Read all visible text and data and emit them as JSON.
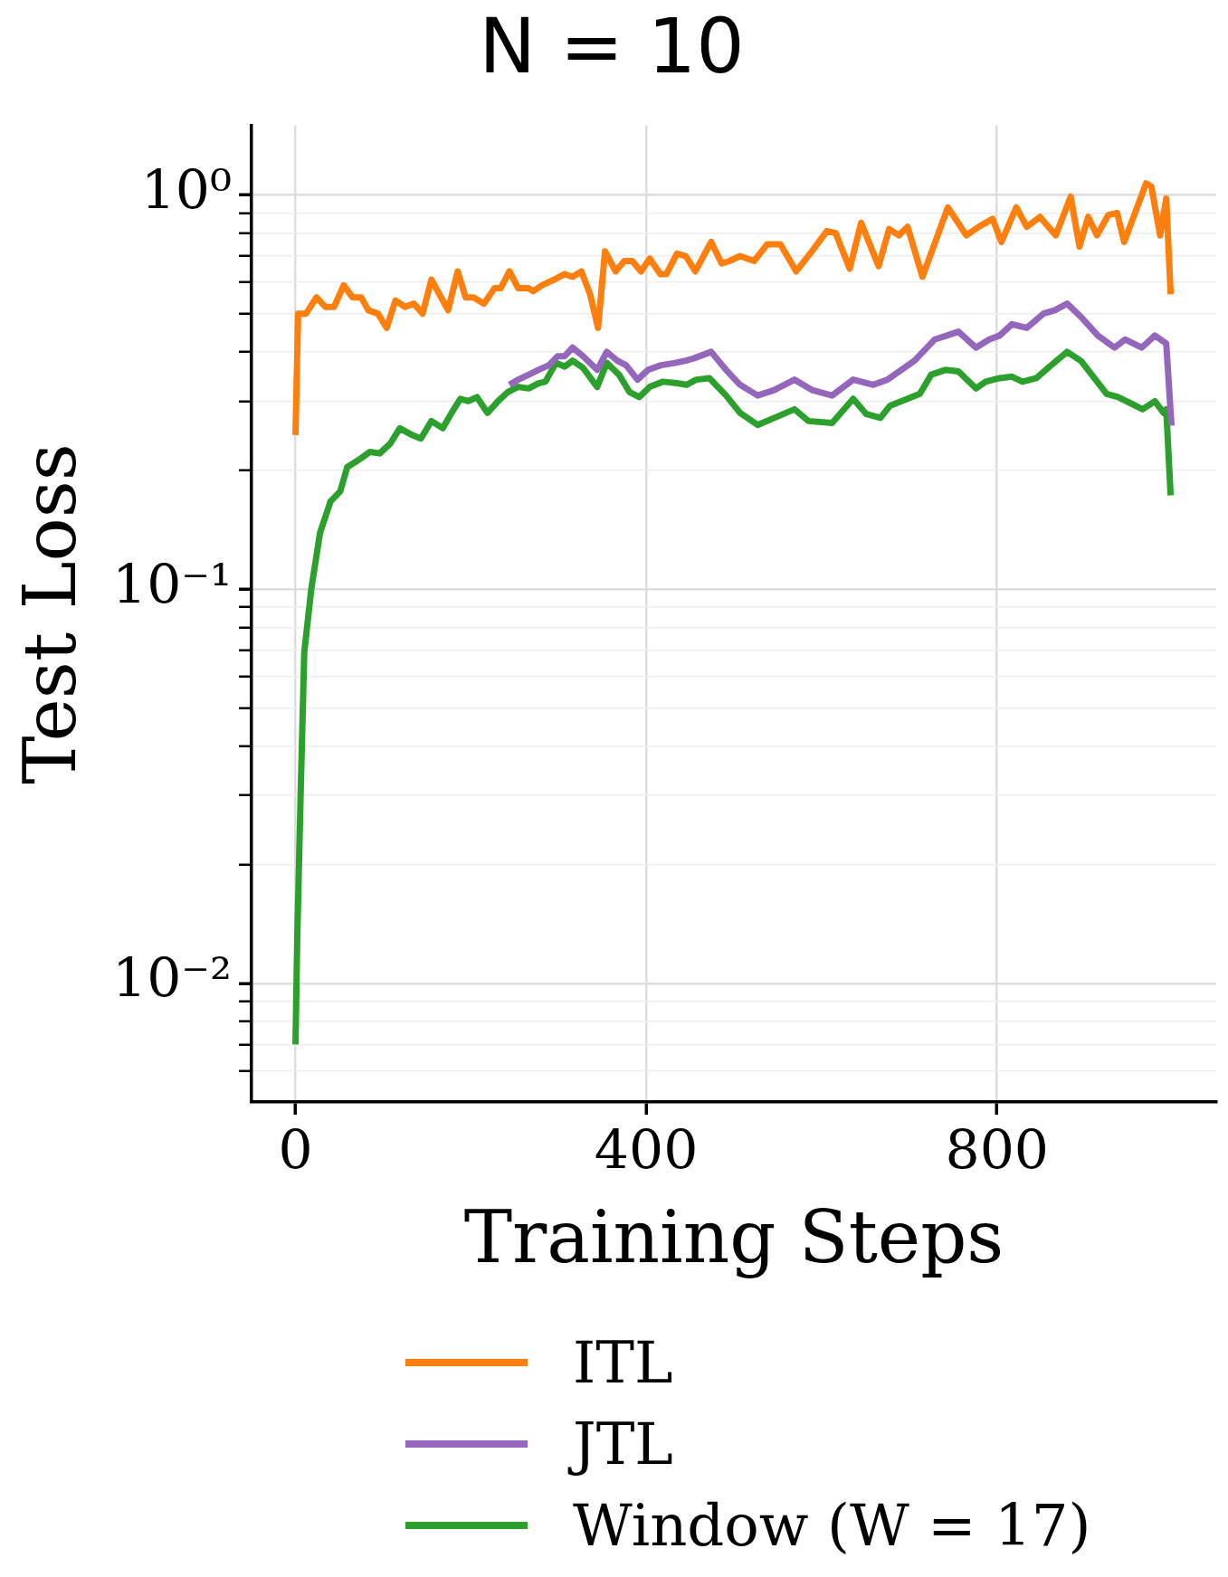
{
  "chart_data": {
    "type": "line",
    "title": "N = 10",
    "xlabel": "Training Steps",
    "ylabel": "Test Loss",
    "log": "y",
    "grid": true,
    "legend": "bottom",
    "xlim": [
      -50,
      1050
    ],
    "xticks": [
      0,
      400,
      800
    ],
    "ylim": [
      0.005,
      1.5
    ],
    "yticks": [
      {
        "value": 0.006,
        "label": null
      },
      {
        "value": 0.007,
        "label": null
      },
      {
        "value": 0.008,
        "label": null
      },
      {
        "value": 0.009,
        "label": null
      },
      {
        "value": 0.01,
        "label": "10⁻²"
      },
      {
        "value": 0.02,
        "label": null
      },
      {
        "value": 0.03,
        "label": null
      },
      {
        "value": 0.04,
        "label": null
      },
      {
        "value": 0.05,
        "label": null
      },
      {
        "value": 0.06,
        "label": null
      },
      {
        "value": 0.07,
        "label": null
      },
      {
        "value": 0.08,
        "label": null
      },
      {
        "value": 0.09,
        "label": null
      },
      {
        "value": 0.1,
        "label": "10⁻¹"
      },
      {
        "value": 0.2,
        "label": null
      },
      {
        "value": 0.3,
        "label": null
      },
      {
        "value": 0.4,
        "label": null
      },
      {
        "value": 0.5,
        "label": null
      },
      {
        "value": 0.6,
        "label": null
      },
      {
        "value": 0.7,
        "label": null
      },
      {
        "value": 0.8,
        "label": null
      },
      {
        "value": 0.9,
        "label": null
      },
      {
        "value": 1,
        "label": "10⁰"
      }
    ],
    "series": [
      {
        "name": "ITL",
        "color": "#ff7f0e",
        "x": [
          0,
          3,
          12,
          24,
          34,
          44,
          55,
          65,
          75,
          83,
          94,
          104,
          114,
          125,
          135,
          145,
          155,
          174,
          185,
          194,
          203,
          215,
          227,
          234,
          244,
          254,
          266,
          271,
          281,
          295,
          307,
          316,
          326,
          336,
          345,
          353,
          365,
          375,
          384,
          394,
          404,
          416,
          423,
          435,
          445,
          456,
          474,
          486,
          495,
          507,
          523,
          538,
          553,
          571,
          589,
          606,
          616,
          632,
          645,
          665,
          677,
          688,
          698,
          715,
          744,
          765,
          779,
          795,
          805,
          822,
          834,
          849,
          867,
          884,
          894,
          904,
          914,
          927,
          937,
          945,
          970,
          976,
          986,
          993,
          998
        ],
        "values": [
          0.246,
          0.5,
          0.5,
          0.55,
          0.52,
          0.52,
          0.59,
          0.55,
          0.55,
          0.51,
          0.5,
          0.46,
          0.54,
          0.52,
          0.53,
          0.5,
          0.61,
          0.51,
          0.64,
          0.55,
          0.55,
          0.53,
          0.58,
          0.58,
          0.64,
          0.58,
          0.58,
          0.57,
          0.59,
          0.61,
          0.63,
          0.62,
          0.64,
          0.56,
          0.46,
          0.72,
          0.64,
          0.68,
          0.68,
          0.64,
          0.69,
          0.63,
          0.63,
          0.71,
          0.7,
          0.64,
          0.76,
          0.67,
          0.68,
          0.7,
          0.68,
          0.75,
          0.75,
          0.64,
          0.72,
          0.81,
          0.8,
          0.65,
          0.85,
          0.66,
          0.82,
          0.79,
          0.83,
          0.62,
          0.93,
          0.79,
          0.83,
          0.87,
          0.76,
          0.93,
          0.83,
          0.88,
          0.79,
          0.99,
          0.74,
          0.88,
          0.79,
          0.89,
          0.9,
          0.76,
          1.07,
          1.05,
          0.79,
          0.98,
          0.56
        ]
      },
      {
        "name": "JTL",
        "color": "#9467bd",
        "x": [
          244,
          254,
          266,
          277,
          289,
          299,
          307,
          316,
          328,
          344,
          355,
          367,
          377,
          390,
          402,
          417,
          433,
          445,
          454,
          474,
          491,
          507,
          527,
          546,
          569,
          589,
          612,
          636,
          659,
          675,
          706,
          729,
          756,
          776,
          791,
          803,
          817,
          834,
          853,
          866,
          880,
          896,
          915,
          934,
          946,
          965,
          980,
          993,
          999
        ],
        "values": [
          0.33,
          0.34,
          0.35,
          0.36,
          0.37,
          0.39,
          0.39,
          0.41,
          0.39,
          0.36,
          0.4,
          0.38,
          0.37,
          0.34,
          0.36,
          0.37,
          0.375,
          0.38,
          0.385,
          0.4,
          0.36,
          0.33,
          0.31,
          0.32,
          0.34,
          0.32,
          0.31,
          0.34,
          0.33,
          0.34,
          0.38,
          0.43,
          0.45,
          0.41,
          0.43,
          0.44,
          0.47,
          0.46,
          0.5,
          0.51,
          0.53,
          0.49,
          0.44,
          0.41,
          0.43,
          0.41,
          0.44,
          0.42,
          0.26
        ]
      },
      {
        "name": "Window (W = 17)",
        "color": "#2ca02c",
        "x": [
          0,
          2,
          6,
          10,
          18,
          28,
          40,
          51,
          59,
          71,
          85,
          96,
          108,
          119,
          133,
          143,
          155,
          168,
          178,
          188,
          197,
          207,
          219,
          231,
          242,
          254,
          266,
          277,
          285,
          297,
          307,
          316,
          328,
          344,
          355,
          369,
          381,
          392,
          404,
          419,
          435,
          446,
          457,
          472,
          491,
          507,
          527,
          546,
          569,
          585,
          612,
          636,
          651,
          667,
          678,
          698,
          712,
          725,
          741,
          756,
          776,
          787,
          803,
          817,
          829,
          845,
          860,
          880,
          896,
          911,
          925,
          938,
          954,
          966,
          980,
          990,
          993,
          998
        ],
        "values": [
          0.007,
          0.013,
          0.031,
          0.069,
          0.1,
          0.139,
          0.167,
          0.177,
          0.204,
          0.212,
          0.223,
          0.221,
          0.234,
          0.256,
          0.246,
          0.241,
          0.267,
          0.256,
          0.28,
          0.304,
          0.3,
          0.307,
          0.28,
          0.3,
          0.316,
          0.326,
          0.323,
          0.333,
          0.336,
          0.375,
          0.367,
          0.38,
          0.364,
          0.326,
          0.375,
          0.35,
          0.316,
          0.307,
          0.326,
          0.336,
          0.333,
          0.33,
          0.34,
          0.343,
          0.31,
          0.28,
          0.261,
          0.272,
          0.286,
          0.267,
          0.264,
          0.304,
          0.278,
          0.272,
          0.292,
          0.304,
          0.313,
          0.35,
          0.36,
          0.357,
          0.323,
          0.336,
          0.343,
          0.346,
          0.336,
          0.343,
          0.367,
          0.4,
          0.379,
          0.343,
          0.313,
          0.307,
          0.295,
          0.286,
          0.3,
          0.28,
          0.286,
          0.173
        ]
      }
    ]
  }
}
